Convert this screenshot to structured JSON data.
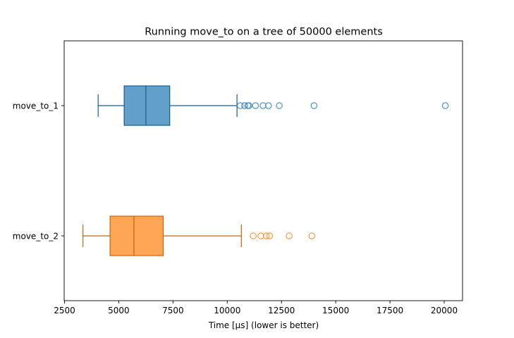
{
  "chart_data": {
    "type": "boxplot",
    "orientation": "horizontal",
    "title": "Running move_to on a tree of 50000 elements",
    "xlabel": "Time [µs] (lower is better)",
    "ylabel": "",
    "xlim": [
      2500,
      20800
    ],
    "xticks": [
      2500,
      5000,
      7500,
      10000,
      12500,
      15000,
      17500,
      20000
    ],
    "xtick_labels": [
      "2500",
      "5000",
      "7500",
      "10000",
      "12500",
      "15000",
      "17500",
      "20000"
    ],
    "grid": false,
    "series": [
      {
        "name": "move_to_1",
        "color": "#1f77b4",
        "whisker_low": 4050,
        "q1": 5250,
        "median": 6250,
        "q3": 7350,
        "whisker_high": 10450,
        "outliers": [
          10600,
          10800,
          10950,
          11000,
          11300,
          11650,
          11900,
          12400,
          14000,
          20050
        ]
      },
      {
        "name": "move_to_2",
        "color": "#ff7f0e",
        "whisker_low": 3350,
        "q1": 4600,
        "median": 5700,
        "q3": 7050,
        "whisker_high": 10650,
        "outliers": [
          11200,
          11550,
          11800,
          11950,
          12850,
          13900
        ]
      }
    ]
  }
}
